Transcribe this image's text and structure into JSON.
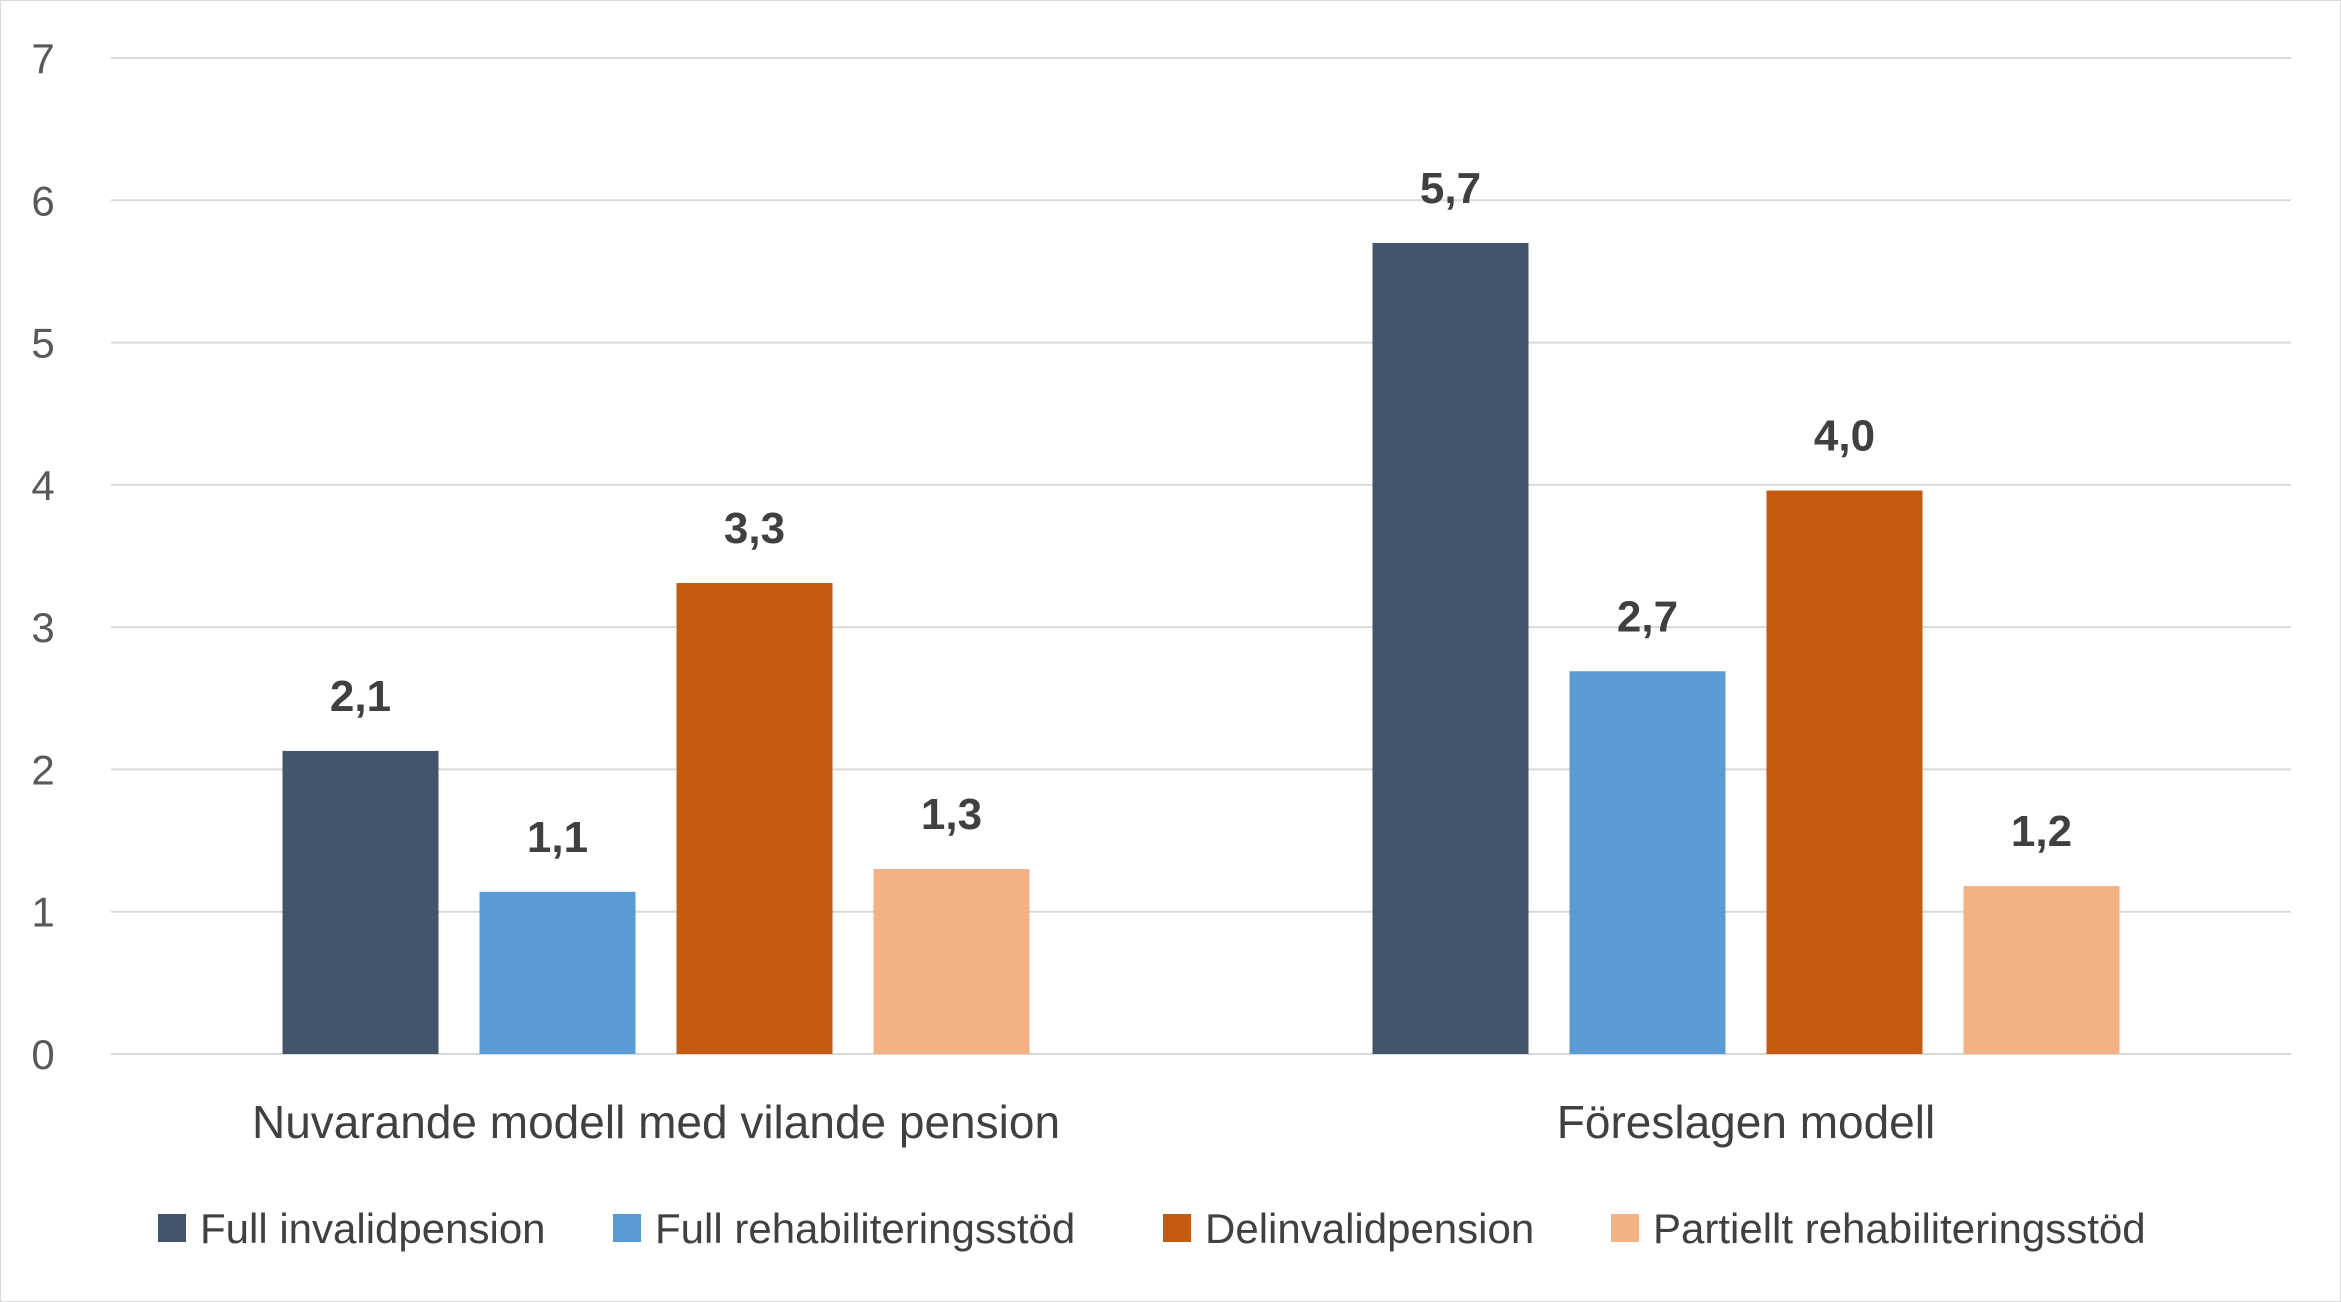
{
  "chart_data": {
    "type": "bar",
    "categories": [
      "Nuvarande modell med vilande pension",
      "Föreslagen modell"
    ],
    "series": [
      {
        "name": "Full invalidpension",
        "values": [
          2.13,
          5.7
        ],
        "labels": [
          "2,1",
          "5,7"
        ],
        "color": "#44546a"
      },
      {
        "name": "Full rehabiliteringsstöd",
        "values": [
          1.14,
          2.69
        ],
        "labels": [
          "1,1",
          "2,7"
        ],
        "color": "#5b9bd5"
      },
      {
        "name": "Delinvalidpension",
        "values": [
          3.31,
          3.96
        ],
        "labels": [
          "3,3",
          "4,0"
        ],
        "color": "#c55a11"
      },
      {
        "name": "Partiellt rehabiliteringsstöd",
        "values": [
          1.3,
          1.18
        ],
        "labels": [
          "1,3",
          "1,2"
        ],
        "color": "#f4b183"
      }
    ],
    "yticks": [
      "0",
      "1",
      "2",
      "3",
      "4",
      "5",
      "6",
      "7"
    ],
    "ylim": [
      0,
      7
    ],
    "grid": true,
    "legend": "bottom",
    "gridline_color": "#d9d9d9"
  }
}
